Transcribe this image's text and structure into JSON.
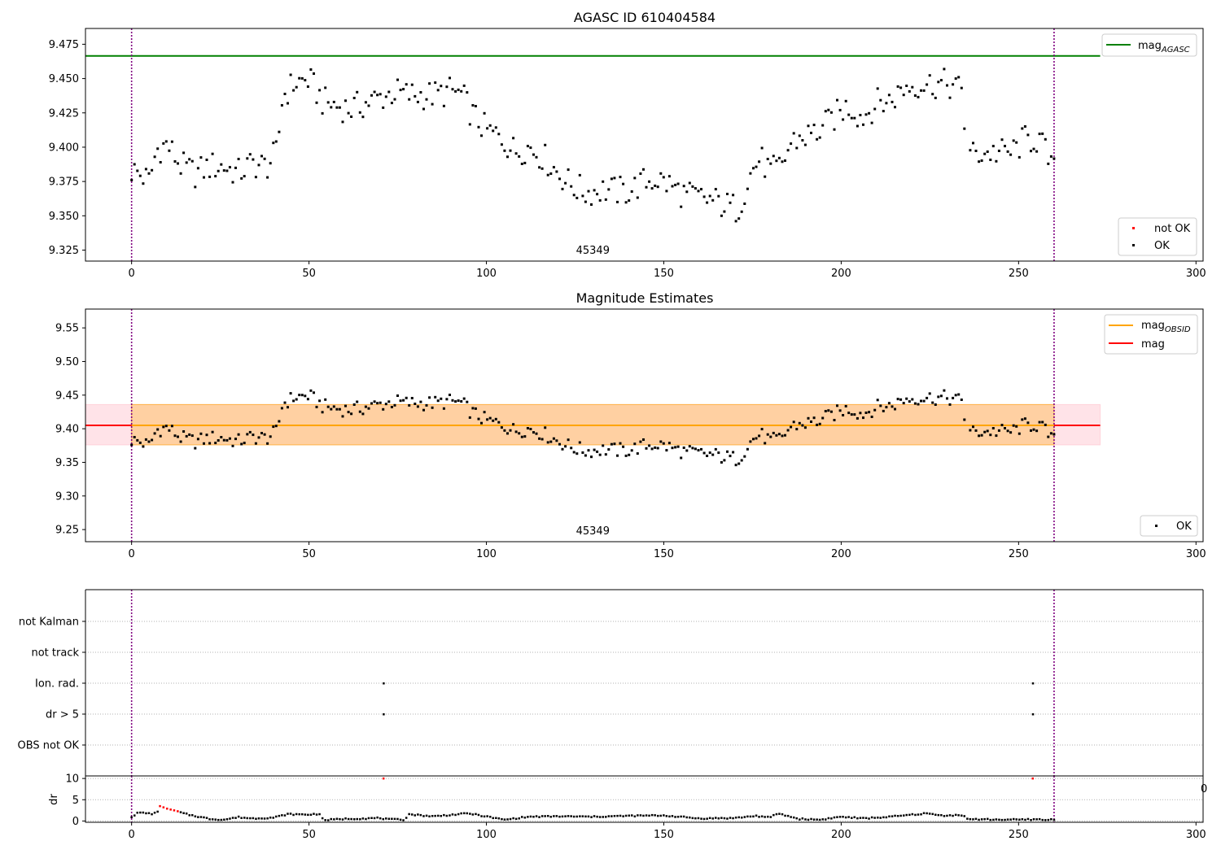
{
  "figure": {
    "background": "#ffffff",
    "marker_color_ok": "#000000",
    "marker_color_not_ok": "#ff0000"
  },
  "chart_data": [
    {
      "id": "agasc",
      "type": "scatter",
      "title": "AGASC ID 610404584",
      "xlim": [
        -13,
        302
      ],
      "ylim": [
        9.317,
        9.4865
      ],
      "xticks": [
        0,
        50,
        100,
        150,
        200,
        250,
        300
      ],
      "yticks": [
        9.325,
        9.35,
        9.375,
        9.4,
        9.425,
        9.45,
        9.475
      ],
      "ytick_labels": [
        "9.325",
        "9.350",
        "9.375",
        "9.400",
        "9.425",
        "9.450",
        "9.475"
      ],
      "vlines": [
        0,
        260
      ],
      "hlines": [
        {
          "name": "mag_AGASC",
          "y": 9.4665,
          "x_range": [
            -13,
            273
          ],
          "color": "#008000"
        }
      ],
      "series": [
        {
          "name": "not OK",
          "color": "#ff0000",
          "x": [],
          "y": []
        },
        {
          "name": "OK",
          "color": "#000000",
          "x": [],
          "y": []
        }
      ],
      "annotations": [
        {
          "text": "45349",
          "x": 130,
          "y_frac_from_bottom": 0.02
        }
      ],
      "legend_line": {
        "label_main": "mag",
        "label_sub": "AGASC",
        "color": "#008000",
        "placement": "upper right"
      },
      "legend_markers": {
        "items": [
          "not OK",
          "OK"
        ],
        "placement": "lower right"
      }
    },
    {
      "id": "mag_est",
      "type": "scatter",
      "title": "Magnitude Estimates",
      "xlim": [
        -13,
        302
      ],
      "ylim": [
        9.232,
        9.578
      ],
      "xticks": [
        0,
        50,
        100,
        150,
        200,
        250,
        300
      ],
      "yticks": [
        9.25,
        9.3,
        9.35,
        9.4,
        9.45,
        9.5,
        9.55
      ],
      "ytick_labels": [
        "9.25",
        "9.30",
        "9.35",
        "9.40",
        "9.45",
        "9.50",
        "9.55"
      ],
      "vlines": [
        0,
        260
      ],
      "bands": [
        {
          "name": "mag",
          "y_range": [
            9.376,
            9.436
          ],
          "x_range": [
            -13,
            273
          ],
          "color": "#ffc0cb",
          "opacity": 0.45
        },
        {
          "name": "mag_OBSID",
          "y_range": [
            9.376,
            9.436
          ],
          "x_range": [
            0,
            260
          ],
          "color": "#ffa500",
          "opacity": 0.3
        }
      ],
      "hlines": [
        {
          "name": "mag",
          "y": 9.405,
          "x_range": [
            -13,
            273
          ],
          "color": "#ff0000"
        },
        {
          "name": "mag_OBSID",
          "y": 9.405,
          "x_range": [
            0,
            260
          ],
          "color": "#ffa500"
        }
      ],
      "series": [
        {
          "name": "OK",
          "color": "#000000",
          "x": [],
          "y": []
        }
      ],
      "annotations": [
        {
          "text": "45349",
          "x": 130,
          "y_frac_from_bottom": 0.02
        }
      ],
      "legend_lines": [
        {
          "label_main": "mag",
          "label_sub": "OBSID",
          "color": "#ffa500"
        },
        {
          "label_main": "mag",
          "label_sub": "",
          "color": "#ff0000"
        }
      ],
      "legend_markers": {
        "items": [
          "OK"
        ],
        "placement": "lower right"
      }
    },
    {
      "id": "flags",
      "type": "scatter",
      "xlim": [
        -13,
        302
      ],
      "categories": [
        "not Kalman",
        "not track",
        "Ion. rad.",
        "dr > 5",
        "OBS not OK"
      ],
      "vlines": [
        0,
        260
      ],
      "points": [
        {
          "category": "Ion. rad.",
          "x": 71
        },
        {
          "category": "Ion. rad.",
          "x": 254
        },
        {
          "category": "dr > 5",
          "x": 71
        },
        {
          "category": "dr > 5",
          "x": 254
        }
      ],
      "clipped_tick_label": "0"
    },
    {
      "id": "dr",
      "type": "scatter",
      "ylabel": "dr",
      "xlim": [
        -13,
        302
      ],
      "ylim": [
        -0.3,
        10.6
      ],
      "xticks": [
        0,
        50,
        100,
        150,
        200,
        250,
        300
      ],
      "yticks": [
        0,
        5,
        10
      ],
      "ytick_labels": [
        "0",
        "5",
        "10"
      ],
      "vlines": [
        0,
        260
      ],
      "series": [
        {
          "name": "OK",
          "color": "#000000",
          "x": [],
          "y": []
        },
        {
          "name": "not OK",
          "color": "#ff0000",
          "x": [
            8,
            9,
            10,
            11,
            12,
            13,
            71,
            254
          ],
          "y": [
            3.5,
            3.2,
            2.9,
            2.7,
            2.5,
            2.3,
            10,
            10
          ]
        }
      ]
    }
  ]
}
